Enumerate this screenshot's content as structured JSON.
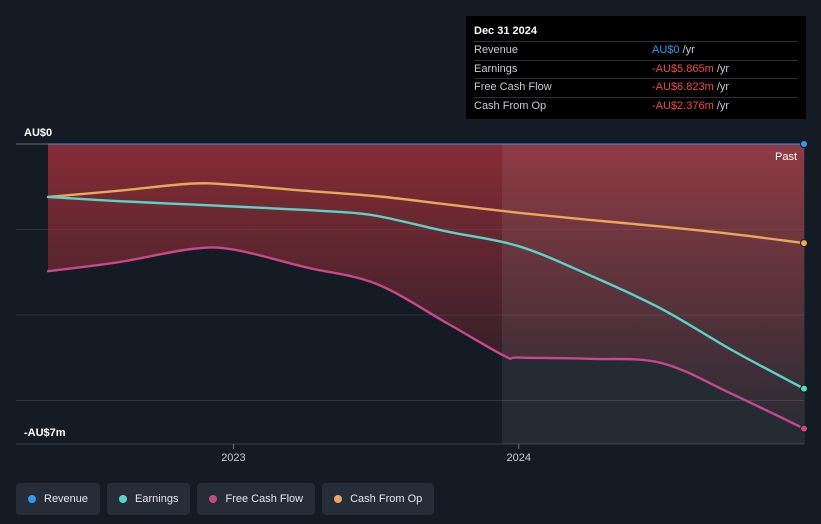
{
  "tooltip": {
    "date": "Dec 31 2024",
    "rows": [
      {
        "label": "Revenue",
        "value": "AU$0",
        "unit": " /yr",
        "color": "#2d9bf0"
      },
      {
        "label": "Earnings",
        "value": "-AU$5.865m",
        "unit": " /yr",
        "color": "#f0494f"
      },
      {
        "label": "Free Cash Flow",
        "value": "-AU$6.823m",
        "unit": " /yr",
        "color": "#f0494f"
      },
      {
        "label": "Cash From Op",
        "value": "-AU$2.376m",
        "unit": " /yr",
        "color": "#f0494f"
      }
    ]
  },
  "past_label": "Past",
  "legend": [
    {
      "label": "Revenue",
      "color": "#2d9bf0"
    },
    {
      "label": "Earnings",
      "color": "#58d5c9"
    },
    {
      "label": "Free Cash Flow",
      "color": "#c9478c"
    },
    {
      "label": "Cash From Op",
      "color": "#e8a95c"
    }
  ],
  "chart_data": {
    "type": "line",
    "ylabel_top": "AU$0",
    "ylabel_bottom": "-AU$7m",
    "ylim": [
      -7,
      0
    ],
    "xlim": [
      2022.35,
      2025.0
    ],
    "xticks": [
      {
        "value": 2023,
        "label": "2023"
      },
      {
        "value": 2024,
        "label": "2024"
      }
    ],
    "grid": true,
    "series": [
      {
        "name": "Revenue",
        "color": "#2d9bf0",
        "x": [
          2022.35,
          2023.0,
          2023.5,
          2024.0,
          2024.5,
          2025.0
        ],
        "y": [
          0,
          0,
          0,
          0,
          0,
          0
        ]
      },
      {
        "name": "Earnings",
        "color": "#58d5c9",
        "x": [
          2022.35,
          2022.6,
          2022.85,
          2023.1,
          2023.35,
          2023.5,
          2023.75,
          2024.0,
          2024.25,
          2024.5,
          2024.75,
          2025.0
        ],
        "y": [
          -1.27,
          -1.37,
          -1.45,
          -1.53,
          -1.62,
          -1.72,
          -2.1,
          -2.45,
          -3.15,
          -3.95,
          -4.95,
          -5.865
        ]
      },
      {
        "name": "Free Cash Flow",
        "color": "#c9478c",
        "x": [
          2022.35,
          2022.6,
          2022.85,
          2023.0,
          2023.25,
          2023.5,
          2023.75,
          2023.95,
          2024.0,
          2024.25,
          2024.5,
          2024.75,
          2025.0
        ],
        "y": [
          -3.05,
          -2.83,
          -2.52,
          -2.53,
          -2.95,
          -3.35,
          -4.3,
          -5.08,
          -5.12,
          -5.15,
          -5.25,
          -6.0,
          -6.823
        ]
      },
      {
        "name": "Cash From Op",
        "color": "#e8a95c",
        "x": [
          2022.35,
          2022.6,
          2022.85,
          2023.0,
          2023.25,
          2023.5,
          2023.75,
          2024.0,
          2024.25,
          2024.5,
          2024.75,
          2025.0
        ],
        "y": [
          -1.27,
          -1.12,
          -0.95,
          -0.98,
          -1.12,
          -1.25,
          -1.45,
          -1.65,
          -1.82,
          -1.98,
          -2.16,
          -2.376
        ]
      }
    ]
  }
}
